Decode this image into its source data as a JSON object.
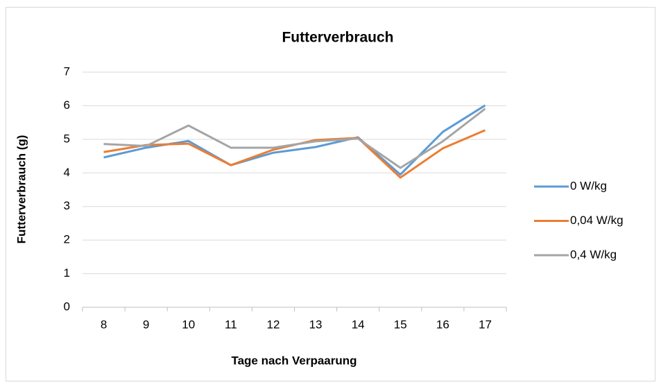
{
  "chart_data": {
    "type": "line",
    "title": "Futterverbrauch",
    "x_label": "Tage nach Verpaarung",
    "y_label": "Futterverbrauch (g)",
    "categories": [
      "8",
      "9",
      "10",
      "11",
      "12",
      "13",
      "14",
      "15",
      "16",
      "17"
    ],
    "series": [
      {
        "name": "0 W/kg",
        "color": "#5b9bd5",
        "values": [
          4.46,
          4.75,
          4.95,
          4.23,
          4.6,
          4.77,
          5.06,
          3.95,
          5.22,
          6.01
        ]
      },
      {
        "name": "0,04 W/kg",
        "color": "#ed7d31",
        "values": [
          4.62,
          4.83,
          4.87,
          4.23,
          4.69,
          4.98,
          5.04,
          3.86,
          4.73,
          5.27
        ]
      },
      {
        "name": "0,4 W/kg",
        "color": "#a5a5a5",
        "values": [
          4.86,
          4.8,
          5.41,
          4.75,
          4.75,
          4.94,
          5.02,
          4.15,
          4.94,
          5.91
        ]
      }
    ],
    "ylim": [
      0,
      7
    ],
    "yticks": [
      0,
      1,
      2,
      3,
      4,
      5,
      6,
      7
    ],
    "grid": true,
    "legend": "right"
  }
}
